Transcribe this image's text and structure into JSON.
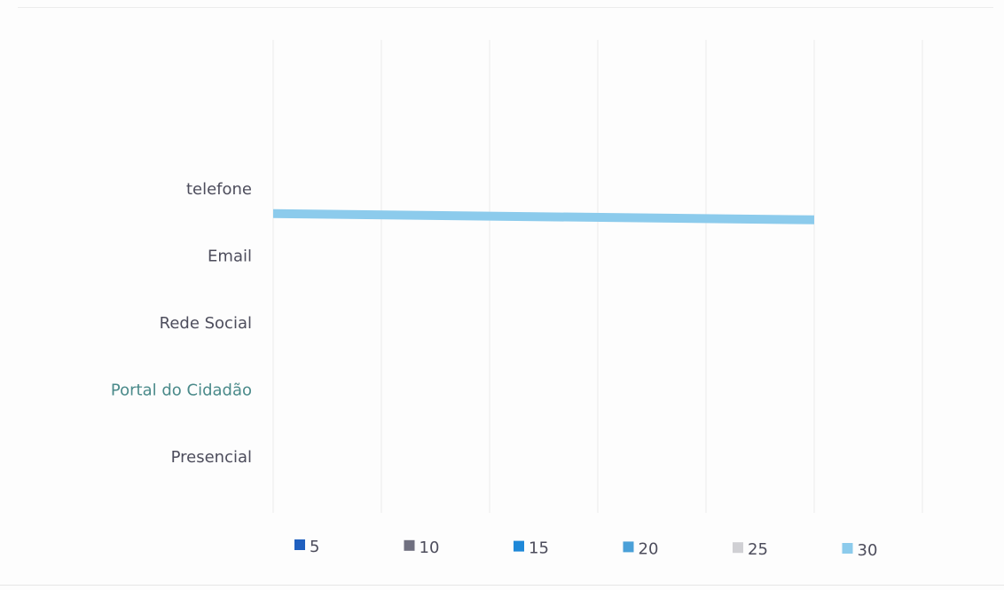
{
  "chart_data": {
    "type": "bar",
    "orientation": "horizontal",
    "categories": [
      "telefone",
      "Email",
      "Rede Social",
      "Portal do Cidadão",
      "Presencial"
    ],
    "series": [
      {
        "name": "5",
        "color": "#1f5fbf",
        "values": [
          null,
          null,
          null,
          null,
          null
        ]
      },
      {
        "name": "10",
        "color": "#707080",
        "values": [
          null,
          null,
          null,
          null,
          null
        ]
      },
      {
        "name": "15",
        "color": "#1e88d8",
        "values": [
          null,
          null,
          null,
          null,
          null
        ]
      },
      {
        "name": "20",
        "color": "#4aa0d8",
        "values": [
          null,
          null,
          null,
          null,
          null
        ]
      },
      {
        "name": "25",
        "color": "#d0d0d4",
        "values": [
          null,
          null,
          null,
          null,
          null
        ]
      },
      {
        "name": "30",
        "color": "#8ccbec",
        "values": [
          25,
          null,
          null,
          null,
          null
        ]
      }
    ],
    "xlim": [
      0,
      30
    ],
    "grid": true,
    "legend_position": "bottom",
    "category_label_colors": [
      "#4d4d5c",
      "#4d4d5c",
      "#4d4d5c",
      "#4a8a8a",
      "#4d4d5c"
    ]
  }
}
